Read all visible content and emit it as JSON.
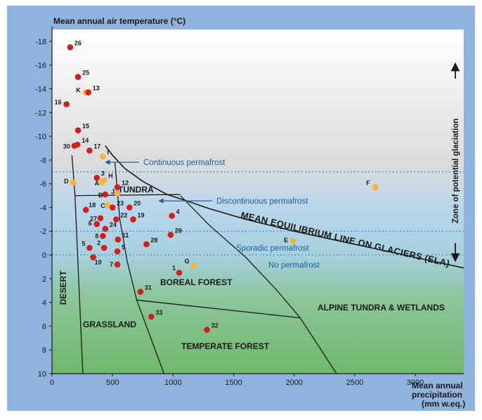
{
  "chart_data": {
    "type": "scatter",
    "title": "",
    "ylabel": "Mean annual air temperature (°C)",
    "xlabel_lines": [
      "Mean annual",
      "precipitation",
      "(mm w.eq.)"
    ],
    "xlim": [
      0,
      3400
    ],
    "ylim": [
      10,
      -19
    ],
    "xticks": [
      0,
      500,
      1000,
      1500,
      2000,
      2500,
      3000
    ],
    "yticks": [
      -18,
      -16,
      -14,
      -12,
      -10,
      -8,
      -6,
      -4,
      -2,
      0,
      2,
      4,
      6,
      8,
      10
    ],
    "colors": {
      "background": "#8fb3dc",
      "red_point": "#d01f1f",
      "orange_point": "#f5b43a",
      "boundary": "#1a1a1a",
      "permafrost_text": "#1f5fa6",
      "gradient_top": "#ffffff",
      "gradient_mid": "#a9cde3",
      "gradient_bottom": "#7bbf74"
    },
    "zone_labels": {
      "desert": "DESERT",
      "grassland": "GRASSLAND",
      "tundra": "TUNDRA",
      "boreal": "BOREAL FOREST",
      "temperate": "TEMPERATE FOREST",
      "alpine": "ALPINE TUNDRA & WETLANDS"
    },
    "permafrost_labels": {
      "continuous": "Continuous permafrost",
      "discontinuous": "Discontinuous permafrost",
      "sporadic": "Sporadic permafrost",
      "none": "No permafrost"
    },
    "ela_label": "MEAN EQUILIBRIUM LINE ON GLACIERS (ELA)",
    "glaciation_label": "Zone of potential glaciation",
    "permafrost_thresholds": [
      -7,
      -2,
      0
    ],
    "points": [
      {
        "label": "26",
        "x": 150,
        "y": -17.5,
        "color": "red"
      },
      {
        "label": "25",
        "x": 215,
        "y": -15.0,
        "color": "red"
      },
      {
        "label": "K",
        "x": 280,
        "y": -13.7,
        "color": "orange"
      },
      {
        "label": "13",
        "x": 300,
        "y": -13.7,
        "color": "red"
      },
      {
        "label": "16",
        "x": 120,
        "y": -12.7,
        "color": "red"
      },
      {
        "label": "15",
        "x": 215,
        "y": -10.5,
        "color": "red"
      },
      {
        "label": "14",
        "x": 210,
        "y": -9.3,
        "color": "red"
      },
      {
        "label": "30",
        "x": 185,
        "y": -9.2,
        "color": "red"
      },
      {
        "label": "17",
        "x": 310,
        "y": -8.8,
        "color": "red"
      },
      {
        "label": "I",
        "x": 420,
        "y": -8.3,
        "color": "orange"
      },
      {
        "label": "D",
        "x": 175,
        "y": -6.1,
        "color": "orange"
      },
      {
        "label": "3",
        "x": 370,
        "y": -6.5,
        "color": "red"
      },
      {
        "label": "A",
        "x": 410,
        "y": -6.1,
        "color": "orange"
      },
      {
        "label": "H",
        "x": 430,
        "y": -6.3,
        "color": "orange"
      },
      {
        "label": "12",
        "x": 540,
        "y": -5.7,
        "color": "red"
      },
      {
        "label": "B",
        "x": 440,
        "y": -5.1,
        "color": "red"
      },
      {
        "label": "J",
        "x": 540,
        "y": -5.2,
        "color": "orange"
      },
      {
        "label": "18",
        "x": 280,
        "y": -3.8,
        "color": "red"
      },
      {
        "label": "C",
        "x": 460,
        "y": -4.2,
        "color": "orange"
      },
      {
        "label": "20",
        "x": 640,
        "y": -4.0,
        "color": "red"
      },
      {
        "label": "27",
        "x": 400,
        "y": -3.1,
        "color": "red"
      },
      {
        "label": "23",
        "x": 500,
        "y": -4.0,
        "color": "red"
      },
      {
        "label": "22",
        "x": 530,
        "y": -3.0,
        "color": "red"
      },
      {
        "label": "19",
        "x": 670,
        "y": -3.0,
        "color": "red"
      },
      {
        "label": "4",
        "x": 990,
        "y": -3.3,
        "color": "red"
      },
      {
        "label": "6",
        "x": 370,
        "y": -2.6,
        "color": "red"
      },
      {
        "label": "24",
        "x": 440,
        "y": -2.2,
        "color": "red"
      },
      {
        "label": "11",
        "x": 545,
        "y": -1.3,
        "color": "red"
      },
      {
        "label": "28",
        "x": 780,
        "y": -0.9,
        "color": "red"
      },
      {
        "label": "29",
        "x": 980,
        "y": -1.7,
        "color": "red"
      },
      {
        "label": "8",
        "x": 420,
        "y": -1.6,
        "color": "red"
      },
      {
        "label": "5",
        "x": 310,
        "y": -0.6,
        "color": "red"
      },
      {
        "label": "2",
        "x": 430,
        "y": -0.6,
        "color": "red"
      },
      {
        "label": "9",
        "x": 540,
        "y": -0.3,
        "color": "red"
      },
      {
        "label": "10",
        "x": 340,
        "y": 0.2,
        "color": "red"
      },
      {
        "label": "7",
        "x": 540,
        "y": 0.8,
        "color": "red"
      },
      {
        "label": "G",
        "x": 1170,
        "y": 0.9,
        "color": "orange"
      },
      {
        "label": "1",
        "x": 1050,
        "y": 1.5,
        "color": "red"
      },
      {
        "label": "E",
        "x": 1990,
        "y": -1.2,
        "color": "orange"
      },
      {
        "label": "F",
        "x": 2670,
        "y": -5.7,
        "color": "orange"
      },
      {
        "label": "31",
        "x": 730,
        "y": 3.1,
        "color": "red"
      },
      {
        "label": "33",
        "x": 820,
        "y": 5.2,
        "color": "red"
      },
      {
        "label": "32",
        "x": 1280,
        "y": 6.3,
        "color": "red"
      }
    ]
  }
}
